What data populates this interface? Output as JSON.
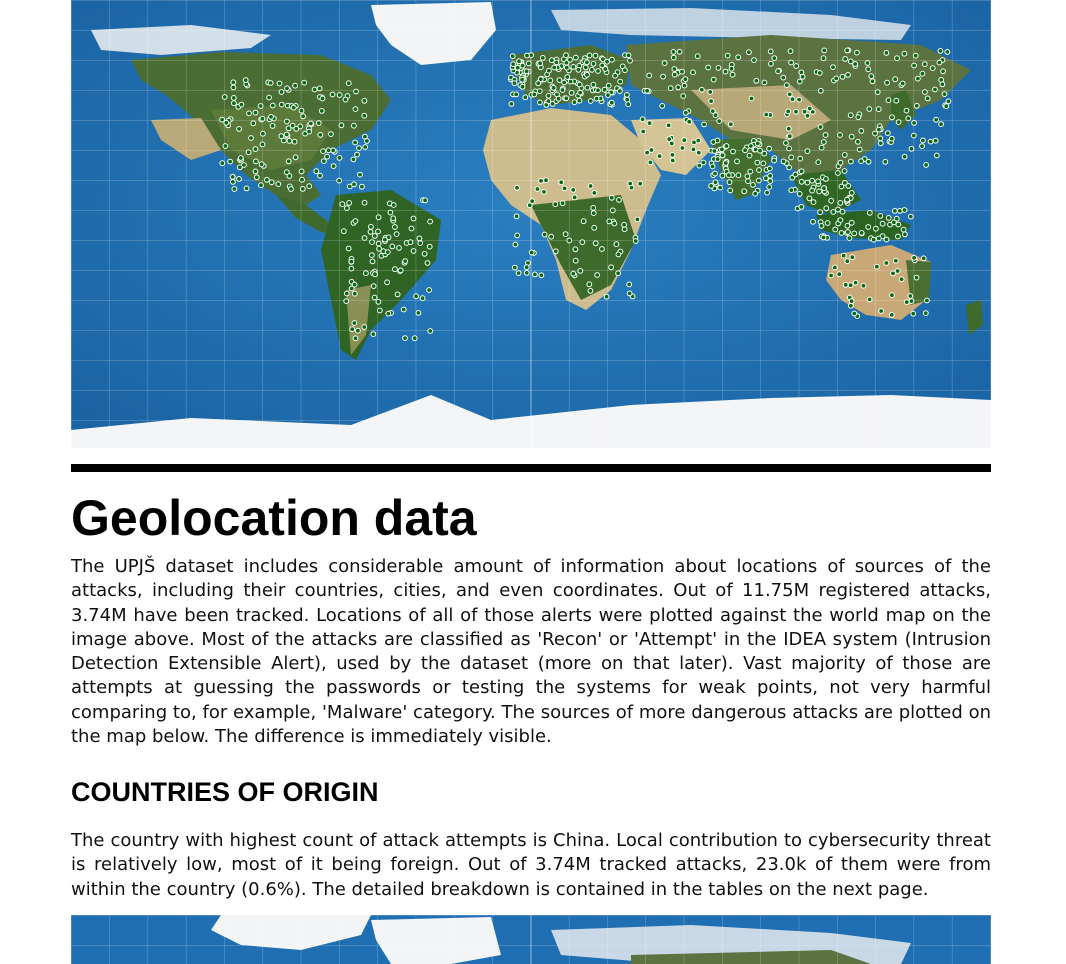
{
  "section": {
    "title": "Geolocation data",
    "paragraph_1": "The UPJŠ dataset includes considerable amount of information about locations of sources of the attacks, including their countries, cities, and even coordinates. Out of 11.75M registered attacks, 3.74M have been tracked. Locations of all of those alerts were plotted against the world map on the image above. Most of the attacks are classified as 'Recon' or 'Attempt' in the IDEA system (Intrusion Detection Extensible Alert), used by the dataset (more on that later). Vast majority of those are attempts at guessing the passwords or testing the systems for weak points, not very harmful comparing to, for example, 'Malware' category. The sources of more dangerous attacks are plotted on the map below. The difference is immediately visible."
  },
  "subsection": {
    "title": "COUNTRIES OF ORIGIN",
    "paragraph": "The country with highest count of attack attempts is China. Local contribution to cybersecurity threat is relatively low, most of it being foreign. Out of 3.74M tracked attacks, 23.0k of them were from within the country (0.6%). The detailed breakdown is contained in the tables on the next page."
  },
  "colors": {
    "ocean": "#1f6fb2",
    "land_green": "#3c6b2a",
    "desert": "#cfbf92",
    "ice": "#f2f4f6",
    "marker_fill": "#0b6b12",
    "marker_stroke": "#ffffff",
    "rule": "#000000"
  },
  "icons": {
    "map_top": "world-map-attack-sources",
    "map_bottom": "world-map-dangerous-attacks"
  }
}
